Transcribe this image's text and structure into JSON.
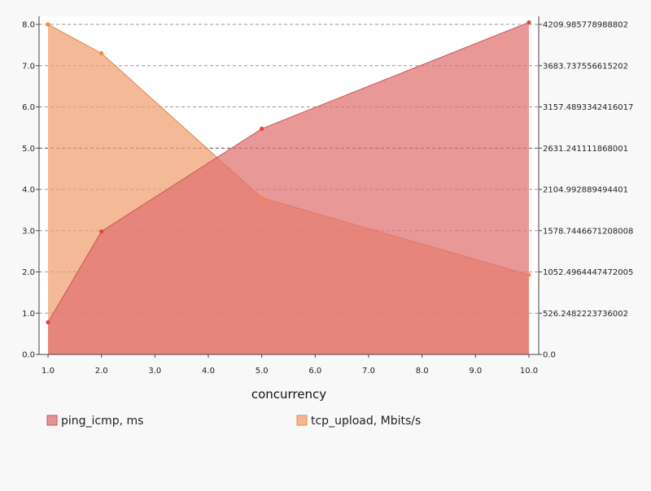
{
  "chart_data": {
    "type": "area",
    "xlabel": "concurrency",
    "x": [
      1.0,
      2.0,
      5.0,
      10.0
    ],
    "x_ticks": [
      "1.0",
      "2.0",
      "3.0",
      "4.0",
      "5.0",
      "6.0",
      "7.0",
      "8.0",
      "9.0",
      "10.0"
    ],
    "xlim": [
      1.0,
      10.0
    ],
    "ylim_left": [
      0,
      8
    ],
    "y_left_ticks": [
      "0.0",
      "1.0",
      "2.0",
      "3.0",
      "4.0",
      "5.0",
      "6.0",
      "7.0",
      "8.0"
    ],
    "ylim_right": [
      0,
      4209.985778988802
    ],
    "y_right_ticks": [
      "0.0",
      "526.2482223736002",
      "1052.4964447472005",
      "1578.7446671208008",
      "2104.992889494401",
      "2631.241111868001",
      "3157.4893342416017",
      "3683.737556615202",
      "4209.985778988802"
    ],
    "grid": true,
    "legend_position": "bottom",
    "series": [
      {
        "name": "ping_icmp, ms",
        "axis": "left",
        "color": "#e07070",
        "values": [
          0.78,
          2.98,
          5.47,
          8.05
        ]
      },
      {
        "name": "tcp_upload, Mbits/s",
        "axis": "right",
        "color": "#f0a070",
        "values": [
          4209.99,
          3842,
          1999,
          1015
        ]
      }
    ]
  }
}
